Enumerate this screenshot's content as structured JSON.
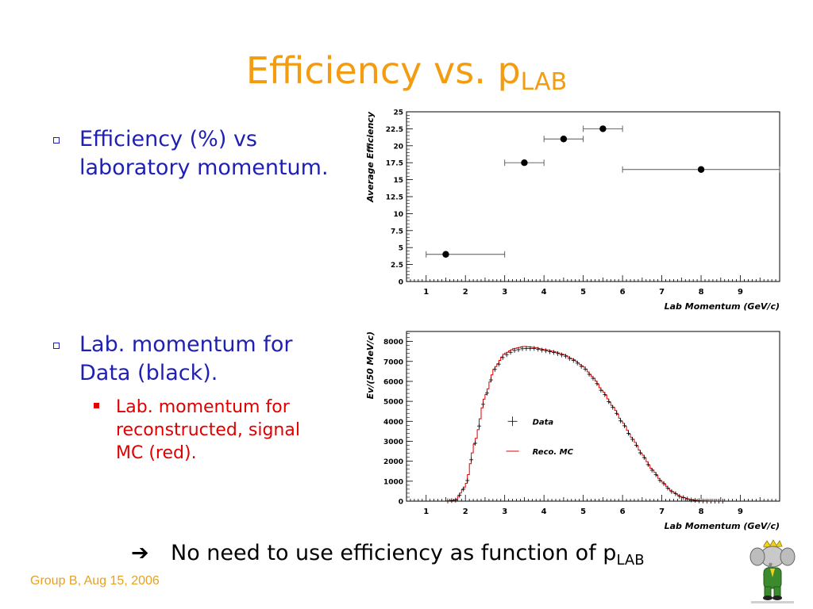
{
  "slide": {
    "title_main": "Efficiency vs. p",
    "title_sub": "LAB",
    "bullets": [
      "Efficiency (%) vs laboratory momentum.",
      "Lab. momentum for Data (black)."
    ],
    "sub_bullet": "Lab. momentum for reconstructed, signal MC (red).",
    "conclusion_arrow": "➔",
    "conclusion_main": "No need to use efficiency as function of p",
    "conclusion_sub": "LAB",
    "footer": "Group B, Aug 15, 2006",
    "logo_icon": "elephant-king-cartoon",
    "colors": {
      "title": "#f39c12",
      "bullet": "#1f1fb4",
      "sub_bullet": "#e00000",
      "footer": "#e8a020",
      "mc_series": "#e00000"
    }
  },
  "chart_data": [
    {
      "type": "scatter",
      "title": "",
      "xlabel": "Lab Momentum (GeV/c)",
      "ylabel": "Average Efficiency",
      "xlim": [
        0.5,
        10
      ],
      "ylim": [
        0,
        25
      ],
      "x_ticks": [
        "1",
        "2",
        "3",
        "4",
        "5",
        "6",
        "7",
        "8",
        "9"
      ],
      "y_ticks": [
        "0",
        "2.5",
        "5",
        "7.5",
        "10",
        "12.5",
        "15",
        "17.5",
        "20",
        "22.5",
        "25"
      ],
      "grid": false,
      "series": [
        {
          "points": [
            {
              "x": 1.5,
              "y": 4.0,
              "xerr_low": 0.5,
              "xerr_high": 1.5
            },
            {
              "x": 3.5,
              "y": 17.5,
              "xerr_low": 0.5,
              "xerr_high": 0.5
            },
            {
              "x": 4.5,
              "y": 21.0,
              "xerr_low": 0.5,
              "xerr_high": 0.5
            },
            {
              "x": 5.5,
              "y": 22.5,
              "xerr_low": 0.5,
              "xerr_high": 0.5
            },
            {
              "x": 8.0,
              "y": 16.5,
              "xerr_low": 2.0,
              "xerr_high": 2.0
            }
          ]
        }
      ]
    },
    {
      "type": "line",
      "title": "",
      "xlabel": "Lab Momentum (GeV/c)",
      "ylabel": "Ev/(50 MeV/c)",
      "xlim": [
        0.5,
        10
      ],
      "ylim": [
        0,
        8500
      ],
      "x_ticks": [
        "1",
        "2",
        "3",
        "4",
        "5",
        "6",
        "7",
        "8",
        "9"
      ],
      "y_ticks": [
        "0",
        "1000",
        "2000",
        "3000",
        "4000",
        "5000",
        "6000",
        "7000",
        "8000"
      ],
      "grid": false,
      "legend_position": "middle-left",
      "x": [
        1.5,
        1.75,
        2.0,
        2.25,
        2.5,
        2.75,
        3.0,
        3.25,
        3.5,
        3.75,
        4.0,
        4.25,
        4.5,
        4.75,
        5.0,
        5.25,
        5.5,
        5.75,
        6.0,
        6.25,
        6.5,
        6.75,
        7.0,
        7.25,
        7.5,
        7.75,
        8.0,
        8.25,
        8.5
      ],
      "series": [
        {
          "name": "Data",
          "values": [
            0,
            50,
            700,
            2900,
            5200,
            6600,
            7300,
            7550,
            7650,
            7650,
            7550,
            7450,
            7300,
            7050,
            6700,
            6150,
            5450,
            4700,
            3900,
            3100,
            2300,
            1550,
            950,
            480,
            200,
            60,
            10,
            0,
            0
          ]
        },
        {
          "name": "Reco. MC",
          "values": [
            0,
            60,
            750,
            3000,
            5250,
            6700,
            7400,
            7650,
            7750,
            7700,
            7600,
            7500,
            7350,
            7100,
            6750,
            6200,
            5500,
            4750,
            3950,
            3150,
            2350,
            1600,
            980,
            500,
            210,
            70,
            12,
            0,
            0
          ]
        }
      ]
    }
  ]
}
